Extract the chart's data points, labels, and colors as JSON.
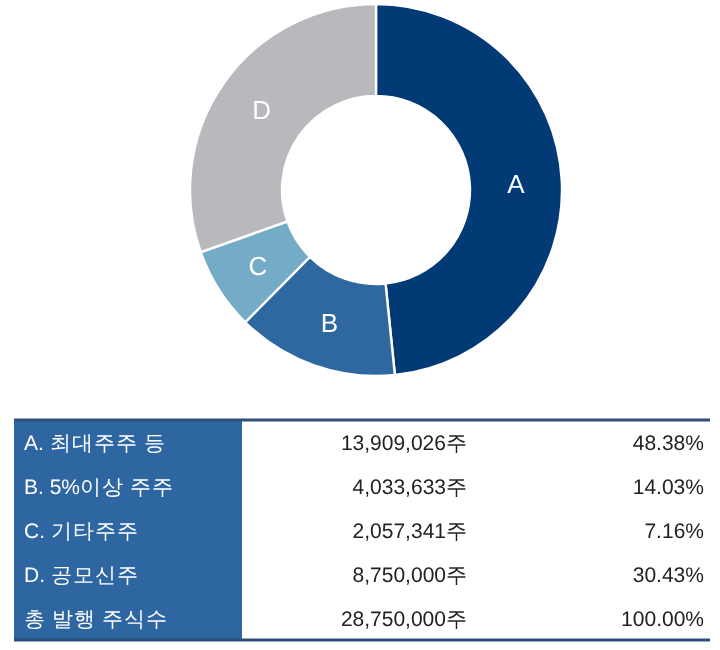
{
  "chart_data": {
    "type": "donut",
    "categories": [
      "A",
      "B",
      "C",
      "D"
    ],
    "values": [
      48.38,
      14.03,
      7.16,
      30.43
    ],
    "colors": [
      "#023a75",
      "#2f67a0",
      "#74acc7",
      "#b8b9bc"
    ],
    "annotations": [
      "A. 최대주주 등",
      "13,909,026주",
      "48.38%",
      "B. 5%이상 주주",
      "4,033,633주",
      "14.03%",
      "C. 기타주주",
      "2,057,341주",
      "7.16%",
      "D. 공모신주",
      "8,750,000주",
      "30.43%",
      "총 발행 주식수",
      "28,750,000주",
      "100.00%"
    ]
  }
}
